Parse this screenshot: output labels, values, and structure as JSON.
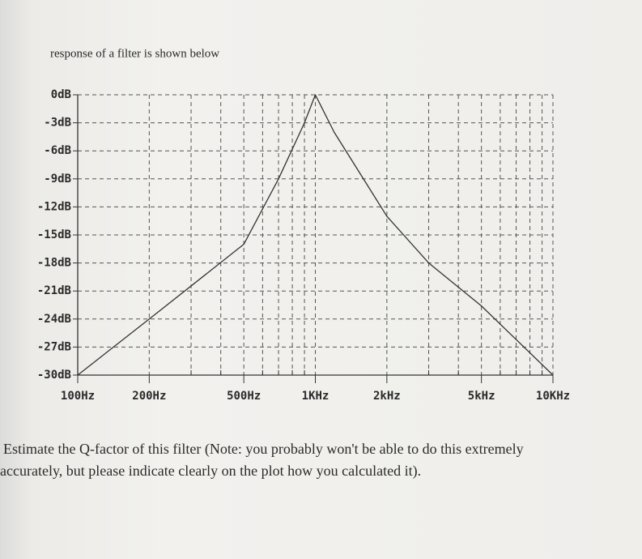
{
  "intro": "response of a filter is shown below",
  "question": [
    "Estimate the Q-factor of this filter (Note: you probably won't be able to do this extremely",
    "accurately, but please indicate clearly on the plot how you calculated it)."
  ],
  "chart_data": {
    "type": "line",
    "x": [
      100,
      200,
      500,
      700,
      900,
      1000,
      1200,
      2000,
      3000,
      5000,
      10000
    ],
    "series": [
      {
        "color": "#333333",
        "values": [
          -30,
          -24,
          -16,
          -9,
          -3,
          0,
          -4,
          -13,
          -18,
          -22.6,
          -30
        ]
      }
    ],
    "xscale": "log",
    "xlim": [
      100,
      10000
    ],
    "ylim": [
      -30,
      0
    ],
    "xticks": [
      {
        "value": 100,
        "label": "100Hz"
      },
      {
        "value": 200,
        "label": "200Hz"
      },
      {
        "value": 500,
        "label": "500Hz"
      },
      {
        "value": 1000,
        "label": "1KHz"
      },
      {
        "value": 2000,
        "label": "2kHz"
      },
      {
        "value": 5000,
        "label": "5kHz"
      },
      {
        "value": 10000,
        "label": "10KHz"
      }
    ],
    "x_minor_grid": [
      300,
      400,
      600,
      700,
      800,
      900,
      3000,
      4000,
      6000,
      7000,
      8000,
      9000
    ],
    "yticks": [
      {
        "value": 0,
        "label": "0dB"
      },
      {
        "value": -3,
        "label": "-3dB"
      },
      {
        "value": -6,
        "label": "-6dB"
      },
      {
        "value": -9,
        "label": "-9dB"
      },
      {
        "value": -12,
        "label": "-12dB"
      },
      {
        "value": -15,
        "label": "-15dB"
      },
      {
        "value": -18,
        "label": "-18dB"
      },
      {
        "value": -21,
        "label": "-21dB"
      },
      {
        "value": -24,
        "label": "-24dB"
      },
      {
        "value": -27,
        "label": "-27dB"
      },
      {
        "value": -30,
        "label": "-30dB"
      }
    ],
    "grid": true
  }
}
